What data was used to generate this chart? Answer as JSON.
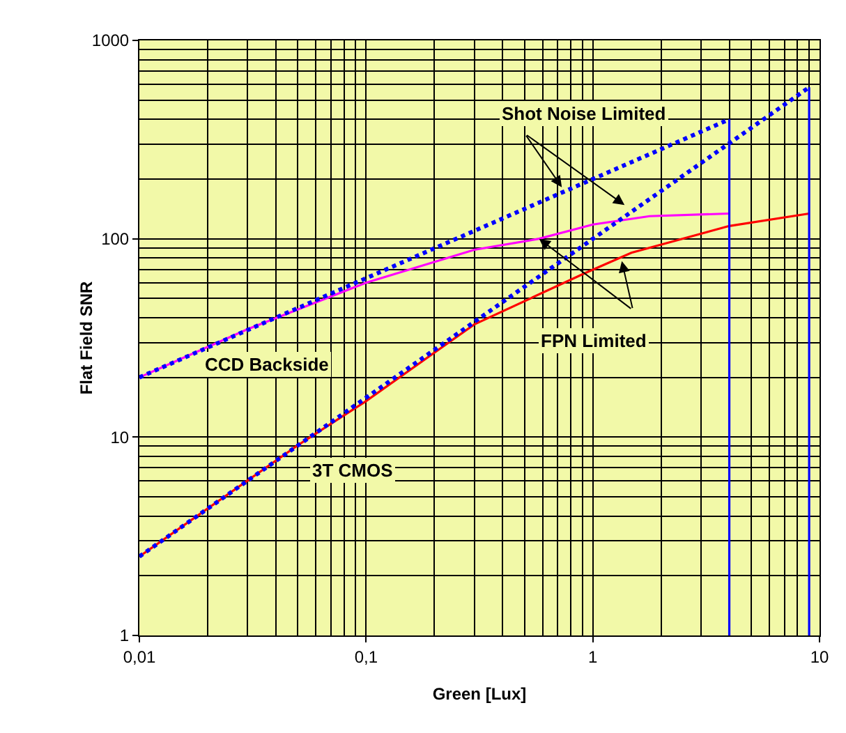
{
  "chart_data": {
    "type": "line",
    "xlabel": "Green [Lux]",
    "ylabel": "Flat Field SNR",
    "log": "xy",
    "xlim": [
      0.01,
      10
    ],
    "ylim": [
      1,
      1000
    ],
    "xticks": [
      {
        "value": 0.01,
        "label": "0,01"
      },
      {
        "value": 0.1,
        "label": "0,1"
      },
      1,
      10
    ],
    "yticks": [
      1,
      10,
      100,
      1000
    ],
    "grid": true,
    "series": [
      {
        "color": "#ff00ff",
        "line_style": "solid",
        "x": [
          0.01,
          0.03,
          0.1,
          0.3,
          0.58,
          1,
          1.78,
          4
        ],
        "values": [
          20,
          35,
          60,
          88,
          100,
          118,
          130,
          134
        ]
      },
      {
        "color": "#ff0000",
        "line_style": "solid",
        "x": [
          0.01,
          0.05,
          0.1,
          0.3,
          0.92,
          1.48,
          4,
          9
        ],
        "values": [
          2.5,
          9.1,
          15.2,
          37,
          67,
          85,
          116,
          134
        ]
      },
      {
        "color": "#0000ff",
        "line_style": "dotted",
        "x": [
          0.01,
          4
        ],
        "values": [
          20,
          400
        ]
      },
      {
        "color": "#0000ff",
        "line_style": "dotted",
        "x": [
          0.01,
          9
        ],
        "values": [
          2.5,
          580
        ]
      },
      {
        "color": "#0000ff",
        "line_style": "solid",
        "x": [
          4,
          4
        ],
        "values": [
          1,
          400
        ]
      },
      {
        "color": "#0000ff",
        "line_style": "solid",
        "x": [
          9,
          9
        ],
        "values": [
          1,
          580
        ]
      }
    ],
    "annotations": [
      {
        "text": "Shot Noise Limited",
        "x": 0.73,
        "y": 182
      },
      {
        "text": "FPN Limited",
        "x": 0.58,
        "y": 100
      },
      "CCD Backside",
      "3T CMOS"
    ]
  }
}
